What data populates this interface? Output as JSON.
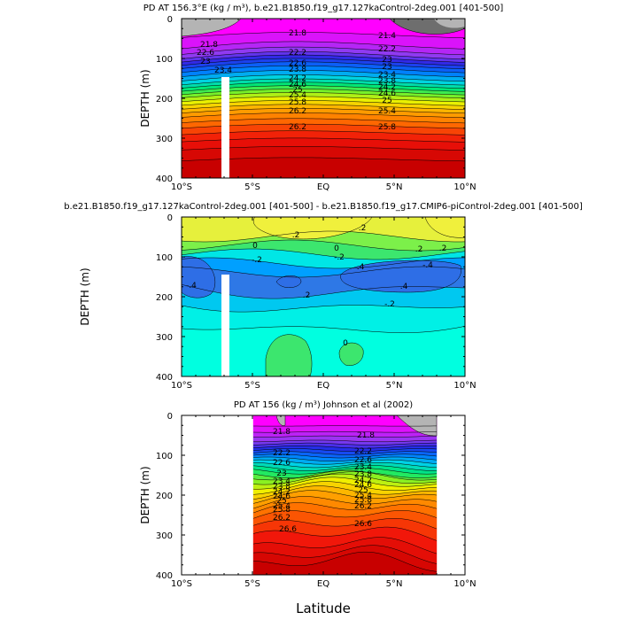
{
  "chart_data": [
    {
      "type": "contour",
      "title": "PD AT 156.3°E (kg / m³), b.e21.B1850.f19_g17.127kaControl-2deg.001 [401-500]",
      "ylabel": "DEPTH (m)",
      "ylim": [
        400,
        0
      ],
      "y_ticks": [
        "0",
        "100",
        "200",
        "300",
        "400"
      ],
      "x_ticks": [
        "10°S",
        "5°S",
        "EQ",
        "5°N",
        "10°N"
      ],
      "contour_labels": [
        "21.8",
        "21.4",
        "21.8",
        "22.2",
        "22.2",
        "22.6",
        "22.6",
        "23",
        "23",
        "23",
        "23.4",
        "23.8",
        "24.2",
        "24.6",
        "25",
        "25.4",
        "25.8",
        "26.2",
        "26.2",
        "25.8",
        "25.4",
        "25",
        "24.6",
        "24.2",
        "23.8",
        "23.4"
      ],
      "density_range": [
        21.4,
        26.6
      ],
      "contour_interval": 0.2
    },
    {
      "type": "contour",
      "title": "b.e21.B1850.f19_g17.127kaControl-2deg.001 [401-500] - b.e21.B1850.f19_g17.CMIP6-piControl-2deg.001 [401-500]",
      "ylabel": "DEPTH (m)",
      "ylim": [
        400,
        0
      ],
      "y_ticks": [
        "0",
        "100",
        "200",
        "300",
        "400"
      ],
      "x_ticks": [
        "10°S",
        "5°S",
        "EQ",
        "5°N",
        "10°N"
      ],
      "contour_labels": [
        ".2",
        ".2",
        "0",
        "0",
        "-.2",
        "-.2",
        ".2",
        "-.4",
        ".4",
        "-.4",
        ".4",
        ".2",
        "-.2",
        ".2",
        "0"
      ]
    },
    {
      "type": "contour",
      "title": "PD AT 156 (kg / m³) Johnson et al (2002)",
      "ylabel": "DEPTH (m)",
      "xlabel": "Latitude",
      "ylim": [
        400,
        0
      ],
      "y_ticks": [
        "0",
        "100",
        "200",
        "300",
        "400"
      ],
      "x_ticks": [
        "10°S",
        "5°S",
        "EQ",
        "5°N",
        "10°N"
      ],
      "contour_labels": [
        "21.8",
        "21.8",
        "22.2",
        "22.2",
        "22.6",
        "22.6",
        "23",
        "23.4",
        "23.4",
        "23.8",
        "23.8",
        "24.2",
        "24.2",
        "24.6",
        "24.6",
        "25",
        "25",
        "25.4",
        "25.4",
        "25.8",
        "25.8",
        "26.2",
        "26.2",
        "26.6",
        "26.6"
      ],
      "density_range": [
        21.4,
        27.0
      ]
    }
  ]
}
